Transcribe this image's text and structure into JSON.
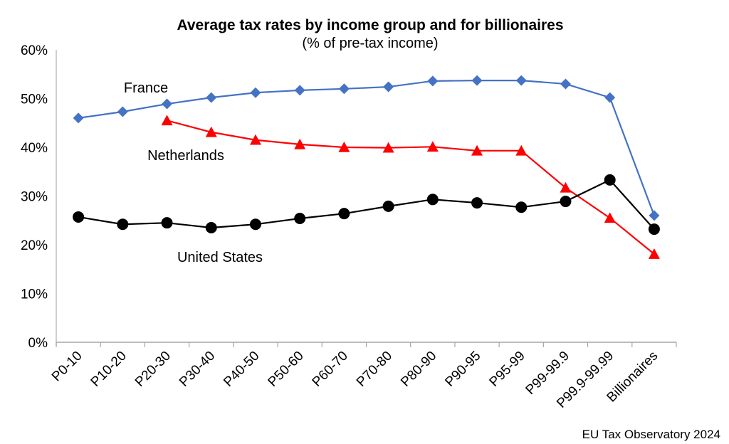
{
  "chart_data": {
    "type": "line",
    "title": "Average tax rates by income group and for billionaires",
    "subtitle": "(% of pre-tax income)",
    "xlabel": "",
    "ylabel": "",
    "ylim": [
      0,
      60
    ],
    "yticks": [
      0,
      10,
      20,
      30,
      40,
      50,
      60
    ],
    "ytick_labels": [
      "0%",
      "10%",
      "20%",
      "30%",
      "40%",
      "50%",
      "60%"
    ],
    "grid": false,
    "legend": "inline labels",
    "categories": [
      "P0-10",
      "P10-20",
      "P20-30",
      "P30-40",
      "P40-50",
      "P50-60",
      "P60-70",
      "P70-80",
      "P80-90",
      "P90-95",
      "P95-99",
      "P99-99.9",
      "P99.9-99.99",
      "Billionaires"
    ],
    "series": [
      {
        "name": "France",
        "color": "#4472C4",
        "marker": "diamond",
        "values": [
          46.0,
          47.3,
          48.9,
          50.2,
          51.2,
          51.7,
          52.0,
          52.4,
          53.6,
          53.7,
          53.7,
          53.0,
          50.2,
          26.0
        ]
      },
      {
        "name": "Netherlands",
        "color": "#FF0000",
        "marker": "triangle",
        "values": [
          null,
          null,
          45.5,
          43.1,
          41.5,
          40.6,
          40.0,
          39.9,
          40.1,
          39.3,
          39.3,
          31.7,
          25.5,
          18.1
        ]
      },
      {
        "name": "United States",
        "color": "#000000",
        "marker": "circle",
        "values": [
          25.7,
          24.2,
          24.5,
          23.5,
          24.2,
          25.4,
          26.4,
          27.9,
          29.3,
          28.6,
          27.7,
          28.9,
          33.3,
          23.2
        ]
      }
    ],
    "annotations": [
      {
        "text": "France",
        "series": "France",
        "near": "P20-30"
      },
      {
        "text": "Netherlands",
        "series": "Netherlands",
        "near": "P30-40"
      },
      {
        "text": "United States",
        "series": "United States",
        "near": "P30-40"
      }
    ],
    "source": "EU Tax Observatory 2024"
  }
}
